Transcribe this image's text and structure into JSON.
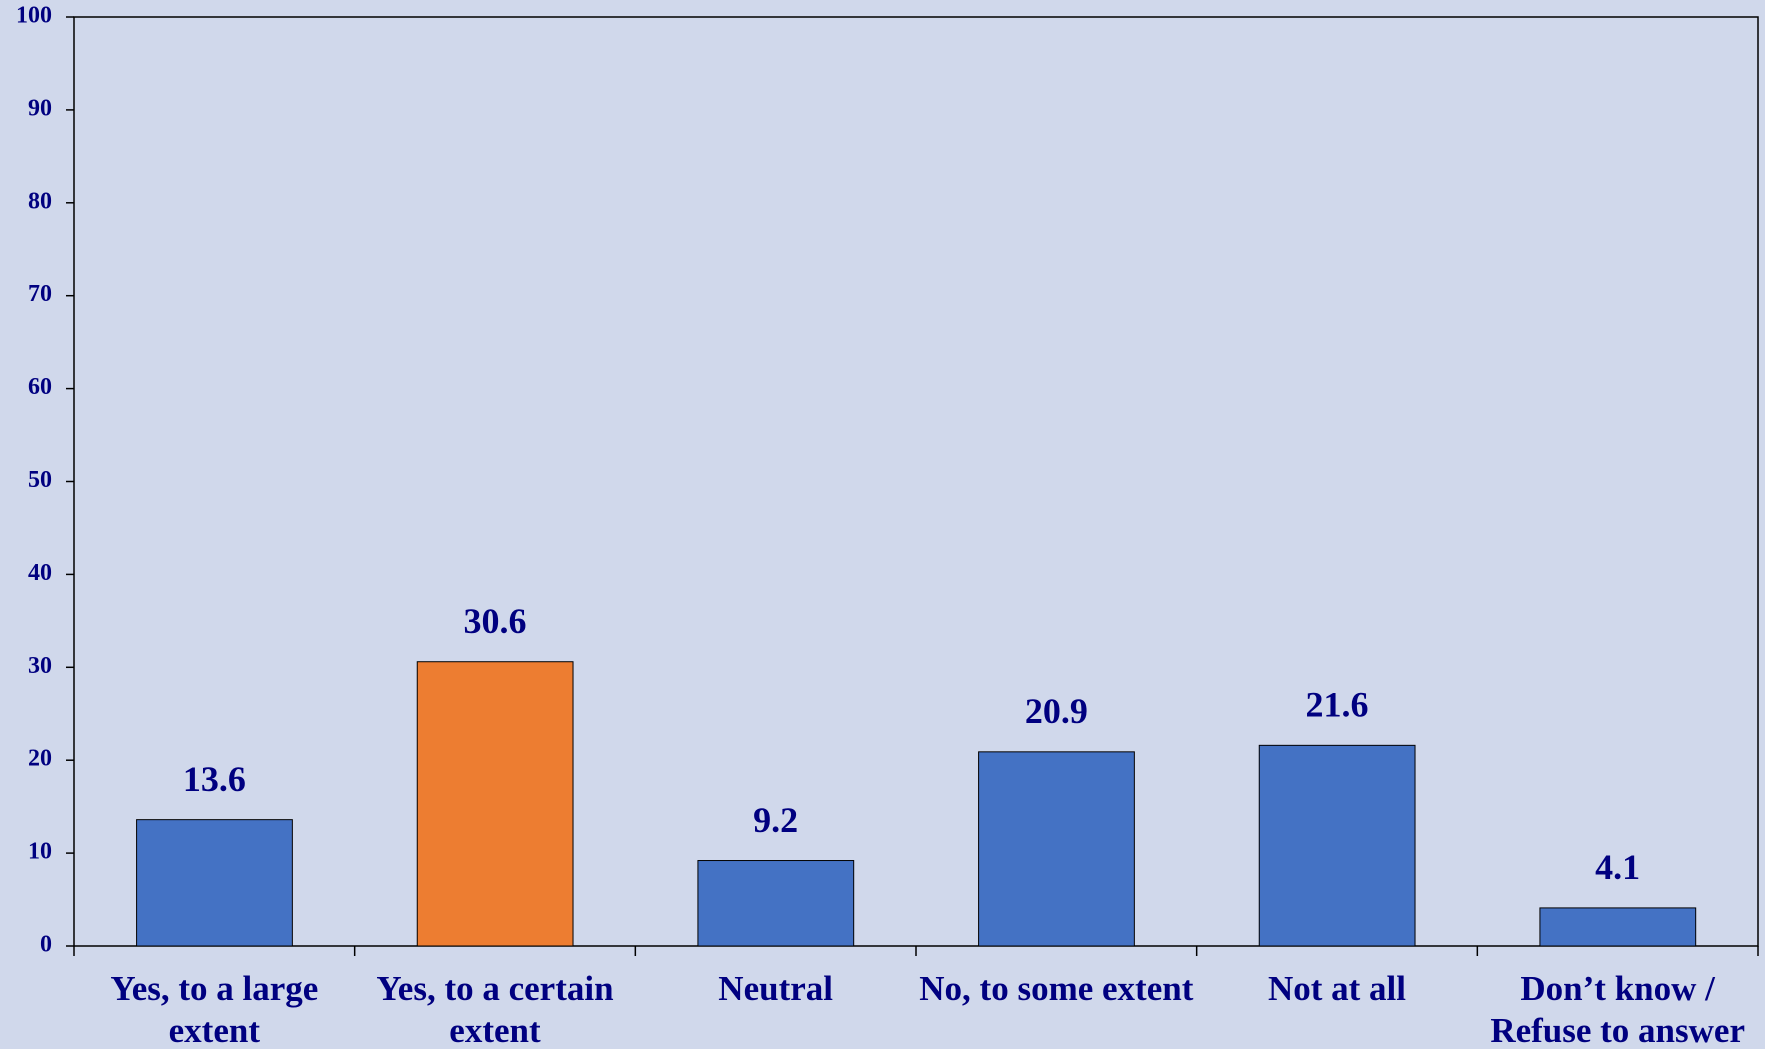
{
  "chart_data": {
    "type": "bar",
    "categories": [
      "Yes, to a large extent",
      "Yes, to a certain extent",
      "Neutral",
      "No, to some extent",
      "Not at all",
      "Don’t know / Refuse to answer"
    ],
    "values": [
      13.6,
      30.6,
      9.2,
      20.9,
      21.6,
      4.1
    ],
    "colors": [
      "#4472c4",
      "#ed7d31",
      "#4472c4",
      "#4472c4",
      "#4472c4",
      "#4472c4"
    ],
    "ylim": [
      0,
      100
    ],
    "yticks": [
      0,
      10,
      20,
      30,
      40,
      50,
      60,
      70,
      80,
      90,
      100
    ],
    "grid": false
  }
}
